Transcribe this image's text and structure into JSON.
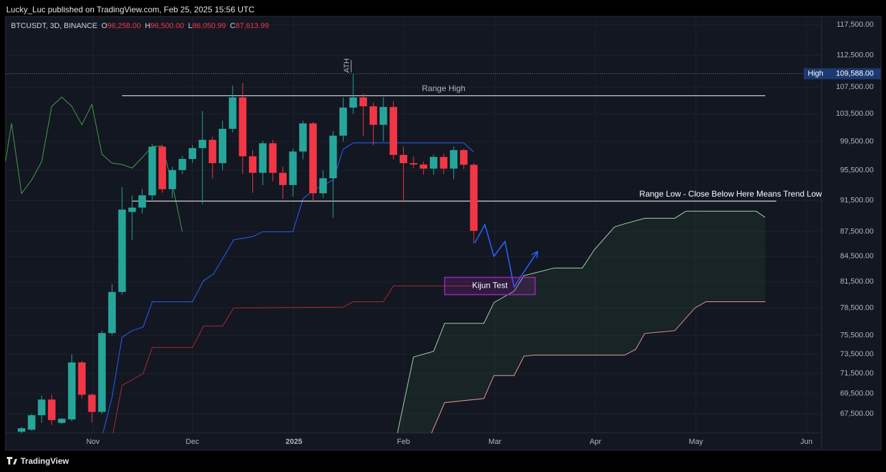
{
  "header": "Lucky_Luc published on TradingView.com, Feb 25, 2025 15:56 UTC",
  "footer": "TradingView",
  "chart_data": {
    "type": "candlestick",
    "symbol": "BTCUSDT, 3D, BINANCE",
    "ohlc": [
      {
        "key": "O",
        "value": "96,258.00"
      },
      {
        "key": "H",
        "value": "96,500.00"
      },
      {
        "key": "L",
        "value": "86,050.99"
      },
      {
        "key": "C",
        "value": "87,613.99"
      }
    ],
    "up_color": "#26a69a",
    "down_color": "#f23645",
    "log_scale": true,
    "grid": true,
    "ylim": [
      65700,
      118900
    ],
    "yticks": [
      {
        "value": 117500,
        "label": "117,500.00"
      },
      {
        "value": 112500,
        "label": "112,500.00"
      },
      {
        "value": 107500,
        "label": "107,500.00"
      },
      {
        "value": 103500,
        "label": "103,500.00"
      },
      {
        "value": 99500,
        "label": "99,500.00"
      },
      {
        "value": 95500,
        "label": "95,500.00"
      },
      {
        "value": 91500,
        "label": "91,500.00"
      },
      {
        "value": 87500,
        "label": "87,500.00"
      },
      {
        "value": 84500,
        "label": "84,500.00"
      },
      {
        "value": 81500,
        "label": "81,500.00"
      },
      {
        "value": 78500,
        "label": "78,500.00"
      },
      {
        "value": 75500,
        "label": "75,500.00"
      },
      {
        "value": 73500,
        "label": "73,500.00"
      },
      {
        "value": 71500,
        "label": "71,500.00"
      },
      {
        "value": 69500,
        "label": "69,500.00"
      },
      {
        "value": 67500,
        "label": "67,500.00"
      }
    ],
    "xlim": [
      -1.6,
      79.6
    ],
    "xticks": [
      {
        "value": 7.1,
        "label": "Nov"
      },
      {
        "value": 17.0,
        "label": "Dec"
      },
      {
        "value": 27.1,
        "label": "2025"
      },
      {
        "value": 38.0,
        "label": "Feb"
      },
      {
        "value": 47.1,
        "label": "Mar"
      },
      {
        "value": 57.1,
        "label": "Apr"
      },
      {
        "value": 67.1,
        "label": "May"
      },
      {
        "value": 78.1,
        "label": "Jun"
      }
    ],
    "x": [
      0,
      1,
      2,
      3,
      4,
      5,
      6,
      7,
      8,
      9,
      10,
      11,
      12,
      13,
      14,
      15,
      16,
      17,
      18,
      19,
      20,
      21,
      22,
      23,
      24,
      25,
      26,
      27,
      28,
      29,
      30,
      31,
      32,
      33,
      34,
      35,
      36,
      37,
      38,
      39,
      40,
      41,
      42,
      43,
      44,
      45
    ],
    "open": [
      65810,
      66010,
      67380,
      68900,
      66650,
      66980,
      72640,
      69370,
      67700,
      75740,
      80310,
      90000,
      90560,
      92160,
      98770,
      92970,
      95540,
      97060,
      98570,
      99740,
      96480,
      101310,
      105950,
      97430,
      95160,
      99250,
      95160,
      93520,
      98090,
      102100,
      92430,
      94430,
      100330,
      104420,
      105950,
      104620,
      101890,
      104520,
      97620,
      96480,
      96290,
      95730,
      97340,
      95730,
      98290,
      96258
    ],
    "high": [
      66270,
      67500,
      69300,
      69370,
      67100,
      73490,
      72800,
      69500,
      76000,
      81180,
      93250,
      92160,
      93000,
      99150,
      99000,
      96000,
      97500,
      99000,
      103900,
      100200,
      102500,
      107740,
      108150,
      98300,
      99600,
      99740,
      96000,
      98500,
      102500,
      102300,
      95500,
      101000,
      105950,
      109588,
      106500,
      105200,
      106000,
      105400,
      98800,
      97400,
      96700,
      97700,
      97800,
      98800,
      98500,
      96500
    ],
    "low": [
      65680,
      65900,
      66650,
      66450,
      66500,
      66800,
      69000,
      66710,
      67500,
      75500,
      80000,
      86490,
      89800,
      91500,
      92500,
      91800,
      95000,
      96500,
      91000,
      94400,
      95500,
      100800,
      95000,
      92500,
      93500,
      94000,
      91700,
      92000,
      97000,
      91300,
      91800,
      89240,
      99500,
      103500,
      100300,
      99000,
      99500,
      97000,
      91260,
      95800,
      94900,
      94900,
      95000,
      94300,
      95700,
      86050.99
    ],
    "close": [
      66140,
      67380,
      68900,
      66910,
      67040,
      72640,
      69370,
      67700,
      75740,
      80310,
      90300,
      90560,
      92160,
      98770,
      92970,
      95540,
      97060,
      98570,
      99740,
      96480,
      101310,
      105950,
      97430,
      95160,
      99250,
      95160,
      93520,
      98090,
      102100,
      92430,
      94430,
      100330,
      104420,
      105950,
      104620,
      101890,
      104520,
      97620,
      96480,
      96290,
      95730,
      97340,
      95730,
      98290,
      96258,
      87613.99
    ],
    "lines": [
      {
        "color": "#2962ff",
        "x": [
          8.1,
          9.0,
          10.0,
          11.0,
          12.1,
          13.0,
          17.0,
          18.1,
          19.1,
          20.0,
          21.1,
          23.0,
          24.0,
          27.0,
          28.0,
          29.0,
          31.0,
          32.0,
          33.0,
          44.0,
          45.0
        ],
        "values": [
          65700,
          69100,
          75300,
          76000,
          76400,
          79200,
          79200,
          81600,
          82400,
          84200,
          86500,
          86900,
          87500,
          87500,
          91700,
          92800,
          94200,
          98400,
          99300,
          99300,
          98000
        ]
      },
      {
        "color": "#b22833",
        "x": [
          9.1,
          10.0,
          12.1,
          13.0,
          17.0,
          18.1,
          20.0,
          21.1,
          32.0,
          33.0,
          36.0,
          37.0,
          44.0,
          45.0
        ],
        "values": [
          65700,
          70300,
          71500,
          74200,
          74200,
          76500,
          76500,
          78500,
          78600,
          79200,
          79200,
          81000,
          81000,
          81000
        ]
      },
      {
        "color": "#43a047",
        "x": [
          -1.6,
          -1.0,
          0,
          1.0,
          2.0,
          3.0,
          4.0,
          5.0,
          6.0,
          7.0,
          8.0,
          9.0,
          10.0,
          11.0,
          12.1,
          13.0,
          14.0,
          15.1,
          16.0
        ],
        "values": [
          96700,
          102100,
          92400,
          94200,
          96700,
          104600,
          106000,
          104600,
          101900,
          104900,
          97700,
          96500,
          96300,
          95800,
          97400,
          98800,
          98900,
          93000,
          87500
        ]
      },
      {
        "color": "#a5d6a7",
        "fill": "rgba(67,160,71,0.10)",
        "x": [
          37.4,
          39.0,
          41.0,
          42.1,
          46.0,
          47.0,
          49.0,
          50.0,
          51.0,
          53.0,
          55.8,
          57.0,
          59.0,
          60.0,
          62.0,
          65.0,
          66.1,
          73.1,
          74.0
        ],
        "values": [
          65700,
          73200,
          73800,
          76800,
          76800,
          79100,
          80400,
          82200,
          82500,
          83100,
          83100,
          85300,
          88100,
          88500,
          89200,
          89200,
          90100,
          90100,
          89300
        ]
      },
      {
        "color": "#ef9a9a",
        "x": [
          40.8,
          42.1,
          46.0,
          47.0,
          49.0,
          50.0,
          51.0,
          60.0,
          61.1,
          62.0,
          65.0,
          67.0,
          68.1,
          74.0
        ],
        "values": [
          65700,
          68600,
          69000,
          71300,
          71300,
          73300,
          73400,
          73400,
          74000,
          75700,
          76000,
          78500,
          79200,
          79200
        ]
      },
      {
        "color": "#2962ff",
        "arrow": true,
        "x": [
          45.1,
          46.1,
          47.0,
          48.1,
          49.0,
          51.3
        ],
        "values": [
          86100,
          88400,
          84500,
          86300,
          80900,
          85000
        ]
      }
    ],
    "levels": [
      {
        "label": "Range High",
        "value": 106200,
        "x": [
          10.0,
          74.0
        ],
        "color": "#ffffff"
      },
      {
        "label": "Range Low - Close Below Here Means Trend Lower.",
        "value": 91400,
        "x": [
          11.0,
          75.1
        ],
        "color": "#ffffff"
      }
    ],
    "box": {
      "label": "Kijun Test",
      "x": [
        42.1,
        51.1
      ],
      "y": [
        80000,
        82000
      ],
      "color": "#9c27b0"
    },
    "ath": "ATH",
    "high_marker": {
      "label": "High",
      "value": 109588,
      "value_label": "109,588.00"
    }
  }
}
